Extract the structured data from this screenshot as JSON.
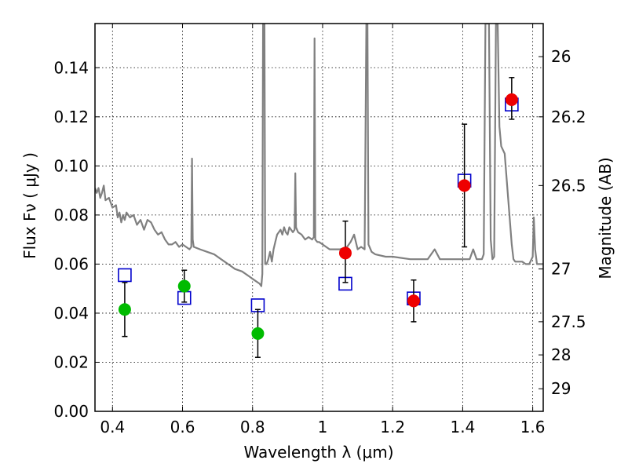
{
  "chart_data": {
    "type": "scatter",
    "xlabel": "Wavelength  λ (μm)",
    "ylabel": "Flux  Fν  ( μJy )",
    "ylabel2": "Magnitude (AB)",
    "xlim": [
      0.35,
      1.63
    ],
    "ylim": [
      0.0,
      0.158
    ],
    "grid": true,
    "x_ticks": [
      {
        "value": 0.4,
        "label": "0.4"
      },
      {
        "value": 0.6,
        "label": "0.6"
      },
      {
        "value": 0.8,
        "label": "0.8"
      },
      {
        "value": 1.0,
        "label": "1"
      },
      {
        "value": 1.2,
        "label": "1.2"
      },
      {
        "value": 1.4,
        "label": "1.4"
      },
      {
        "value": 1.6,
        "label": "1.6"
      }
    ],
    "y_ticks": [
      {
        "value": 0.0,
        "label": "0.00"
      },
      {
        "value": 0.02,
        "label": "0.02"
      },
      {
        "value": 0.04,
        "label": "0.04"
      },
      {
        "value": 0.06,
        "label": "0.06"
      },
      {
        "value": 0.08,
        "label": "0.08"
      },
      {
        "value": 0.1,
        "label": "0.10"
      },
      {
        "value": 0.12,
        "label": "0.12"
      },
      {
        "value": 0.14,
        "label": "0.14"
      }
    ],
    "mag_ticks": [
      {
        "flux": 0.1445,
        "label": "26"
      },
      {
        "flux": 0.12,
        "label": "26.2"
      },
      {
        "flux": 0.092,
        "label": "26.5"
      },
      {
        "flux": 0.058,
        "label": "27"
      },
      {
        "flux": 0.0365,
        "label": "27.5"
      },
      {
        "flux": 0.023,
        "label": "28"
      },
      {
        "flux": 0.0092,
        "label": "29"
      }
    ],
    "series": [
      {
        "color": "#808080",
        "marker": "line",
        "points": [
          [
            0.35,
            0.091
          ],
          [
            0.355,
            0.089
          ],
          [
            0.36,
            0.091
          ],
          [
            0.365,
            0.087
          ],
          [
            0.37,
            0.089
          ],
          [
            0.375,
            0.092
          ],
          [
            0.38,
            0.086
          ],
          [
            0.39,
            0.087
          ],
          [
            0.4,
            0.083
          ],
          [
            0.41,
            0.084
          ],
          [
            0.415,
            0.079
          ],
          [
            0.42,
            0.081
          ],
          [
            0.425,
            0.077
          ],
          [
            0.43,
            0.08
          ],
          [
            0.435,
            0.078
          ],
          [
            0.44,
            0.081
          ],
          [
            0.45,
            0.079
          ],
          [
            0.46,
            0.08
          ],
          [
            0.47,
            0.076
          ],
          [
            0.48,
            0.078
          ],
          [
            0.49,
            0.074
          ],
          [
            0.5,
            0.078
          ],
          [
            0.51,
            0.077
          ],
          [
            0.52,
            0.074
          ],
          [
            0.53,
            0.072
          ],
          [
            0.54,
            0.073
          ],
          [
            0.55,
            0.07
          ],
          [
            0.56,
            0.068
          ],
          [
            0.57,
            0.068
          ],
          [
            0.58,
            0.069
          ],
          [
            0.59,
            0.067
          ],
          [
            0.6,
            0.068
          ],
          [
            0.61,
            0.067
          ],
          [
            0.62,
            0.066
          ],
          [
            0.625,
            0.067
          ],
          [
            0.627,
            0.103
          ],
          [
            0.629,
            0.07
          ],
          [
            0.632,
            0.067
          ],
          [
            0.65,
            0.066
          ],
          [
            0.67,
            0.065
          ],
          [
            0.69,
            0.064
          ],
          [
            0.71,
            0.062
          ],
          [
            0.73,
            0.06
          ],
          [
            0.75,
            0.058
          ],
          [
            0.77,
            0.057
          ],
          [
            0.79,
            0.055
          ],
          [
            0.8,
            0.054
          ],
          [
            0.81,
            0.053
          ],
          [
            0.82,
            0.052
          ],
          [
            0.825,
            0.051
          ],
          [
            0.828,
            0.056
          ],
          [
            0.83,
            0.158
          ],
          [
            0.834,
            0.158
          ],
          [
            0.836,
            0.06
          ],
          [
            0.84,
            0.06
          ],
          [
            0.845,
            0.062
          ],
          [
            0.85,
            0.065
          ],
          [
            0.855,
            0.061
          ],
          [
            0.86,
            0.066
          ],
          [
            0.865,
            0.069
          ],
          [
            0.87,
            0.072
          ],
          [
            0.875,
            0.073
          ],
          [
            0.88,
            0.074
          ],
          [
            0.885,
            0.072
          ],
          [
            0.89,
            0.075
          ],
          [
            0.895,
            0.073
          ],
          [
            0.9,
            0.072
          ],
          [
            0.905,
            0.075
          ],
          [
            0.91,
            0.074
          ],
          [
            0.915,
            0.073
          ],
          [
            0.92,
            0.074
          ],
          [
            0.922,
            0.097
          ],
          [
            0.924,
            0.075
          ],
          [
            0.93,
            0.073
          ],
          [
            0.94,
            0.072
          ],
          [
            0.95,
            0.07
          ],
          [
            0.96,
            0.071
          ],
          [
            0.97,
            0.07
          ],
          [
            0.975,
            0.071
          ],
          [
            0.977,
            0.152
          ],
          [
            0.979,
            0.07
          ],
          [
            0.985,
            0.069
          ],
          [
            0.99,
            0.069
          ],
          [
            1.0,
            0.068
          ],
          [
            1.01,
            0.067
          ],
          [
            1.02,
            0.066
          ],
          [
            1.03,
            0.066
          ],
          [
            1.05,
            0.066
          ],
          [
            1.07,
            0.067
          ],
          [
            1.08,
            0.069
          ],
          [
            1.09,
            0.072
          ],
          [
            1.1,
            0.066
          ],
          [
            1.11,
            0.067
          ],
          [
            1.12,
            0.066
          ],
          [
            1.125,
            0.158
          ],
          [
            1.128,
            0.158
          ],
          [
            1.131,
            0.068
          ],
          [
            1.14,
            0.065
          ],
          [
            1.15,
            0.064
          ],
          [
            1.18,
            0.063
          ],
          [
            1.2,
            0.063
          ],
          [
            1.25,
            0.062
          ],
          [
            1.3,
            0.062
          ],
          [
            1.32,
            0.066
          ],
          [
            1.335,
            0.062
          ],
          [
            1.36,
            0.062
          ],
          [
            1.39,
            0.062
          ],
          [
            1.42,
            0.062
          ],
          [
            1.43,
            0.066
          ],
          [
            1.44,
            0.062
          ],
          [
            1.455,
            0.062
          ],
          [
            1.46,
            0.064
          ],
          [
            1.465,
            0.158
          ],
          [
            1.475,
            0.158
          ],
          [
            1.48,
            0.07
          ],
          [
            1.485,
            0.062
          ],
          [
            1.49,
            0.063
          ],
          [
            1.495,
            0.158
          ],
          [
            1.5,
            0.158
          ],
          [
            1.505,
            0.116
          ],
          [
            1.51,
            0.108
          ],
          [
            1.52,
            0.105
          ],
          [
            1.54,
            0.068
          ],
          [
            1.545,
            0.062
          ],
          [
            1.55,
            0.061
          ],
          [
            1.56,
            0.061
          ],
          [
            1.57,
            0.061
          ],
          [
            1.58,
            0.06
          ],
          [
            1.59,
            0.06
          ],
          [
            1.6,
            0.063
          ],
          [
            1.603,
            0.079
          ],
          [
            1.607,
            0.066
          ],
          [
            1.612,
            0.06
          ],
          [
            1.63,
            0.06
          ]
        ]
      },
      {
        "color": "#0000cc",
        "marker": "square",
        "points": [
          [
            0.435,
            0.0555
          ],
          [
            0.605,
            0.0462
          ],
          [
            0.815,
            0.0432
          ],
          [
            1.065,
            0.052
          ],
          [
            1.26,
            0.046
          ],
          [
            1.405,
            0.094
          ],
          [
            1.54,
            0.125
          ]
        ]
      },
      {
        "color": "#00bb00",
        "marker": "circle",
        "points": [
          [
            0.435,
            0.0415
          ],
          [
            0.605,
            0.051
          ],
          [
            0.815,
            0.0317
          ]
        ],
        "errors": [
          [
            0.0305,
            0.0525
          ],
          [
            0.0445,
            0.0575
          ],
          [
            0.022,
            0.0415
          ]
        ]
      },
      {
        "color": "#ee0000",
        "marker": "circle",
        "points": [
          [
            1.065,
            0.0645
          ],
          [
            1.26,
            0.045
          ],
          [
            1.405,
            0.092
          ],
          [
            1.54,
            0.127
          ]
        ],
        "errors": [
          [
            0.0525,
            0.0775
          ],
          [
            0.0365,
            0.0535
          ],
          [
            0.067,
            0.117
          ],
          [
            0.119,
            0.136
          ]
        ]
      }
    ]
  }
}
